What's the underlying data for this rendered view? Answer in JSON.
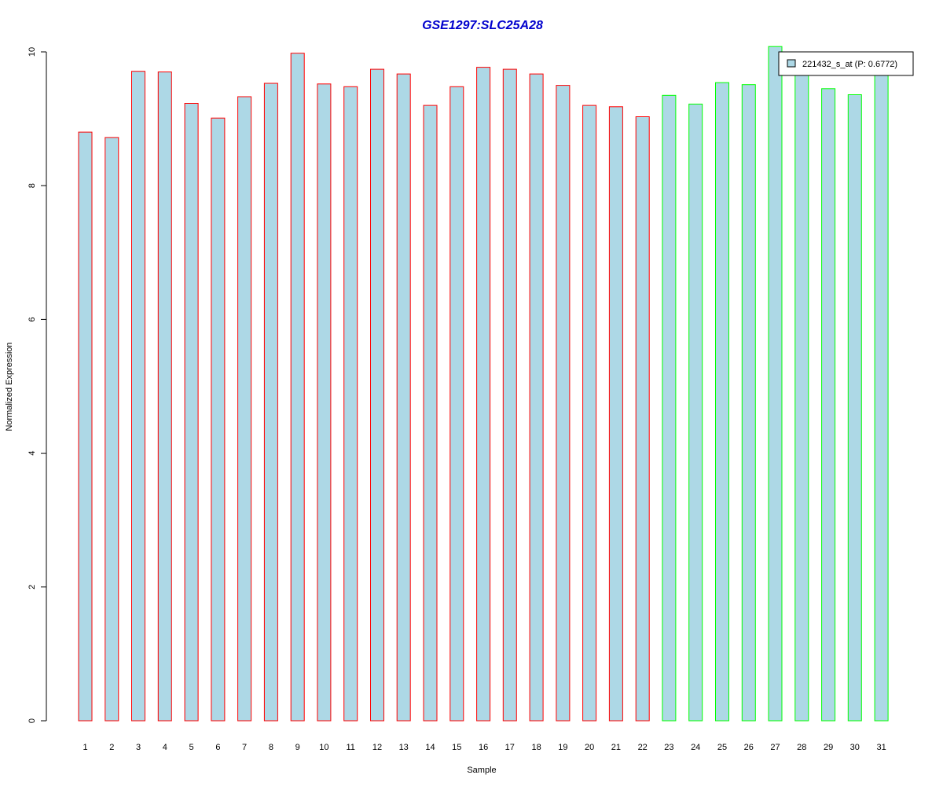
{
  "chart_data": {
    "type": "bar",
    "title": "GSE1297:SLC25A28",
    "xlabel": "Sample",
    "ylabel": "Normalized Expression",
    "ylim": [
      0,
      10
    ],
    "yticks": [
      0,
      2,
      4,
      6,
      8,
      10
    ],
    "categories": [
      "1",
      "2",
      "3",
      "4",
      "5",
      "6",
      "7",
      "8",
      "9",
      "10",
      "11",
      "12",
      "13",
      "14",
      "15",
      "16",
      "17",
      "18",
      "19",
      "20",
      "21",
      "22",
      "23",
      "24",
      "25",
      "26",
      "27",
      "28",
      "29",
      "30",
      "31"
    ],
    "series": [
      {
        "name": "221432_s_at (P: 0.6772)",
        "values": [
          8.8,
          8.72,
          9.71,
          9.7,
          9.23,
          9.01,
          9.33,
          9.53,
          9.98,
          9.52,
          9.48,
          9.74,
          9.67,
          9.2,
          9.48,
          9.77,
          9.74,
          9.67,
          9.5,
          9.2,
          9.18,
          9.03,
          9.35,
          9.22,
          9.54,
          9.51,
          10.08,
          9.73,
          9.45,
          9.36,
          9.68
        ],
        "groups": [
          "a",
          "a",
          "a",
          "a",
          "a",
          "a",
          "a",
          "a",
          "a",
          "a",
          "a",
          "a",
          "a",
          "a",
          "a",
          "a",
          "a",
          "a",
          "a",
          "a",
          "a",
          "a",
          "b",
          "b",
          "b",
          "b",
          "b",
          "b",
          "b",
          "b",
          "b"
        ]
      }
    ],
    "colors": {
      "bar_fill": "#add8e6",
      "group_a_border": "#ff0000",
      "group_b_border": "#00ff00",
      "title": "#0000cd"
    },
    "legend_placement": "top-right",
    "grid": false
  }
}
